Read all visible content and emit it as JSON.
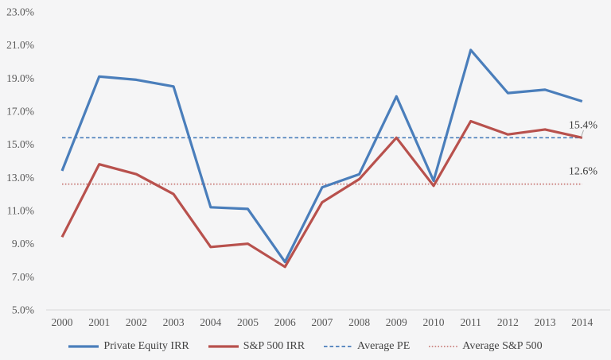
{
  "chart_data": {
    "type": "line",
    "title": "",
    "categories": [
      "2000",
      "2001",
      "2002",
      "2003",
      "2004",
      "2005",
      "2006",
      "2007",
      "2008",
      "2009",
      "2010",
      "2011",
      "2012",
      "2013",
      "2014"
    ],
    "series": [
      {
        "name": "Private Equity IRR",
        "color": "#4a7ebb",
        "style": "solid",
        "values": [
          13.4,
          19.1,
          18.9,
          18.5,
          11.2,
          11.1,
          7.9,
          12.4,
          13.2,
          17.9,
          12.8,
          20.7,
          18.1,
          18.3,
          17.6
        ]
      },
      {
        "name": "S&P 500 IRR",
        "color": "#b8514d",
        "style": "solid",
        "values": [
          9.4,
          13.8,
          13.2,
          12.0,
          8.8,
          9.0,
          7.6,
          11.5,
          12.9,
          15.4,
          12.5,
          16.4,
          15.6,
          15.9,
          15.4
        ]
      }
    ],
    "reference_lines": [
      {
        "name": "Average PE",
        "value": 15.4,
        "color": "#4a7ebb",
        "style": "dashed"
      },
      {
        "name": "Average S&P 500",
        "value": 12.6,
        "color": "#cb817e",
        "style": "dotted"
      }
    ],
    "annotations": [
      {
        "text": "15.4%",
        "value": 15.4,
        "connector": true
      },
      {
        "text": "12.6%",
        "value": 12.6,
        "connector": false
      }
    ],
    "y_axis": {
      "min": 5,
      "max": 23,
      "tick_step": 2,
      "ticks": [
        {
          "label": "23.0%",
          "value": 23
        },
        {
          "label": "21.0%",
          "value": 21
        },
        {
          "label": "19.0%",
          "value": 19
        },
        {
          "label": "17.0%",
          "value": 17
        },
        {
          "label": "15.0%",
          "value": 15
        },
        {
          "label": "13.0%",
          "value": 13
        },
        {
          "label": "11.0%",
          "value": 11
        },
        {
          "label": "9.0%",
          "value": 9
        },
        {
          "label": "7.0%",
          "value": 7
        },
        {
          "label": "5.0%",
          "value": 5
        }
      ]
    },
    "legend_position": "bottom",
    "grid": "bottom-axis-line-only",
    "colors": {
      "background": "#f5f5f6",
      "axis_line": "#d9d9d9",
      "tick_text": "#595959",
      "annotation_text": "#3d3d3d",
      "legend_text": "#444444",
      "connector": "#a6a6a6"
    }
  }
}
